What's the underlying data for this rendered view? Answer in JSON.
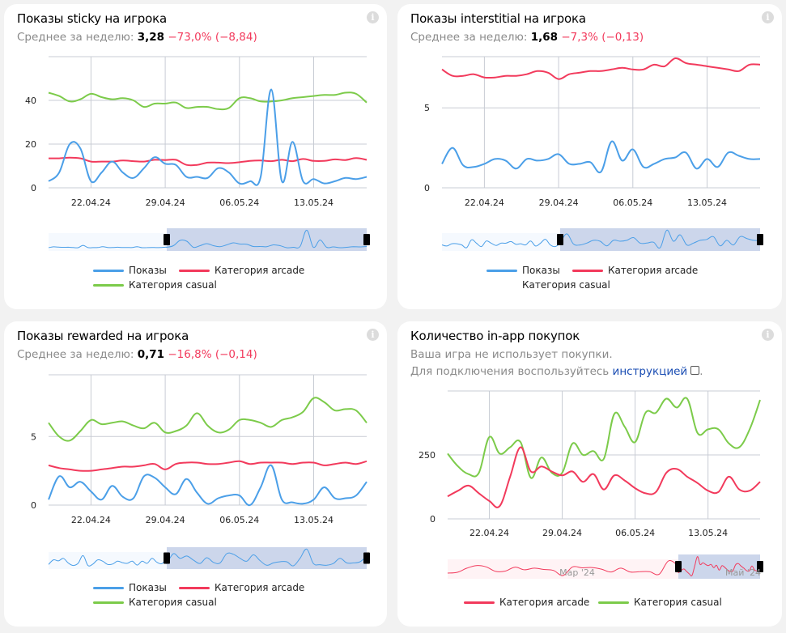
{
  "colors": {
    "shows": "#4b9fe8",
    "arcade": "#f23a5c",
    "casual": "#7ccb4a",
    "grid": "#c8ccd4",
    "navigator_mask": "#ccd6eb"
  },
  "cards": [
    {
      "title": "Показы sticky на игрока",
      "subtitle_prefix": "Среднее за неделю: ",
      "value": "3,28",
      "change": "−73,0% (−8,84)",
      "info_icon": "info-icon"
    },
    {
      "title": "Показы interstitial на игрока",
      "subtitle_prefix": "Среднее за неделю: ",
      "value": "1,68",
      "change": "−7,3% (−0,13)",
      "info_icon": "info-icon"
    },
    {
      "title": "Показы rewarded на игрока",
      "subtitle_prefix": "Среднее за неделю: ",
      "value": "0,71",
      "change": "−16,8% (−0,14)",
      "info_icon": "info-icon"
    },
    {
      "title": "Количество in-app покупок",
      "line1": "Ваша игра не использует покупки.",
      "line2_prefix": "Для подключения воспользуйтесь ",
      "link": "инструкцией",
      "line2_suffix": ".",
      "info_icon": "info-icon"
    }
  ],
  "legend": {
    "shows": "Показы",
    "arcade": "Категория arcade",
    "casual": "Категория casual"
  },
  "navigator_labels": [
    "Мар '24",
    "Май '24"
  ],
  "chart_data": [
    {
      "type": "line",
      "title": "Показы sticky на игрока",
      "x_start": "18.04.24",
      "x_end": "18.05.24",
      "xticks": [
        "22.04.24",
        "29.04.24",
        "06.05.24",
        "13.05.24"
      ],
      "yticks": [
        0,
        20,
        40
      ],
      "ylim": [
        0,
        60
      ],
      "grid": true,
      "legend": "bottom",
      "series": [
        {
          "name": "Показы",
          "key": "shows",
          "values": [
            3,
            7,
            20,
            18,
            3,
            7,
            12,
            7,
            4.5,
            9,
            14,
            11,
            10.5,
            5,
            5,
            4.5,
            9,
            7,
            2,
            3,
            5,
            45,
            3,
            21,
            3,
            4,
            2,
            3,
            4.5,
            4,
            5
          ]
        },
        {
          "name": "Категория arcade",
          "key": "arcade",
          "values": [
            13.5,
            13.5,
            13.8,
            13.5,
            12,
            12,
            12,
            12.5,
            12.2,
            12,
            12.8,
            12.7,
            12.8,
            10.5,
            10.5,
            11.5,
            11.5,
            11.3,
            11.7,
            12.3,
            12.5,
            12.2,
            12.8,
            12.2,
            13.2,
            12.3,
            12.3,
            13,
            12.7,
            13.6,
            12.8
          ]
        },
        {
          "name": "Категория casual",
          "key": "casual",
          "values": [
            43.5,
            42,
            39.5,
            40.5,
            43,
            41.5,
            40.5,
            41,
            40,
            37,
            38.5,
            38.5,
            39,
            36.5,
            37,
            37,
            36,
            36.5,
            41,
            41,
            39.5,
            39.5,
            40,
            41,
            41.5,
            42,
            42.5,
            42.5,
            43.5,
            43,
            39
          ]
        }
      ]
    },
    {
      "type": "line",
      "title": "Показы interstitial на игрока",
      "x_start": "18.04.24",
      "x_end": "18.05.24",
      "xticks": [
        "22.04.24",
        "29.04.24",
        "06.05.24",
        "13.05.24"
      ],
      "yticks": [
        0,
        5
      ],
      "ylim": [
        0,
        8.2
      ],
      "grid": true,
      "legend": "bottom",
      "series": [
        {
          "name": "Показы",
          "key": "shows",
          "values": [
            1.5,
            2.5,
            1.4,
            1.3,
            1.5,
            1.8,
            1.7,
            1.2,
            1.8,
            1.7,
            1.8,
            2.1,
            1.5,
            1.5,
            1.6,
            1,
            2.9,
            1.7,
            2.4,
            1.3,
            1.5,
            1.8,
            1.9,
            2.2,
            1.2,
            1.8,
            1.3,
            2.2,
            2,
            1.8,
            1.8
          ]
        },
        {
          "name": "Категория arcade",
          "key": "arcade",
          "values": [
            7.4,
            7,
            7,
            7.1,
            6.9,
            6.9,
            7,
            7,
            7.1,
            7.3,
            7.2,
            6.8,
            7.1,
            7.2,
            7.3,
            7.3,
            7.4,
            7.5,
            7.4,
            7.4,
            7.7,
            7.6,
            8.1,
            7.8,
            7.7,
            7.6,
            7.5,
            7.4,
            7.3,
            7.7,
            7.7
          ]
        },
        {
          "name": "Категория casual",
          "key": "casual",
          "values": []
        }
      ]
    },
    {
      "type": "line",
      "title": "Показы rewarded на игрока",
      "x_start": "18.04.24",
      "x_end": "18.05.24",
      "xticks": [
        "22.04.24",
        "29.04.24",
        "06.05.24",
        "13.05.24"
      ],
      "yticks": [
        0,
        5
      ],
      "ylim": [
        0,
        9.5
      ],
      "grid": true,
      "legend": "bottom",
      "series": [
        {
          "name": "Показы",
          "key": "shows",
          "values": [
            0.4,
            2.1,
            1.3,
            1.7,
            1,
            0.4,
            1.4,
            0.6,
            0.5,
            2.1,
            2,
            1.3,
            0.8,
            1.9,
            0.9,
            0.1,
            0.5,
            0.7,
            0.7,
            0,
            1.3,
            2.9,
            0.4,
            0.2,
            0.1,
            0.4,
            1.3,
            0.5,
            0.5,
            0.7,
            1.7
          ]
        },
        {
          "name": "Категория arcade",
          "key": "arcade",
          "values": [
            2.9,
            2.7,
            2.6,
            2.5,
            2.5,
            2.6,
            2.7,
            2.8,
            2.8,
            2.9,
            3,
            2.6,
            3,
            3.1,
            3.1,
            3,
            3,
            3.1,
            3.2,
            3,
            3.1,
            3.1,
            3.1,
            3,
            3.1,
            3.1,
            2.9,
            3,
            3.1,
            3,
            3.2
          ]
        },
        {
          "name": "Категория casual",
          "key": "casual",
          "values": [
            6,
            5,
            4.7,
            5.4,
            6.2,
            5.9,
            6,
            6.1,
            5.8,
            5.6,
            6,
            5.3,
            5.4,
            5.8,
            6.7,
            5.8,
            5.3,
            5.5,
            6.2,
            6.2,
            6,
            5.7,
            6.2,
            6.4,
            6.8,
            7.8,
            7.5,
            6.9,
            7,
            6.9,
            6
          ]
        }
      ]
    },
    {
      "type": "line",
      "title": "Количество in-app покупок",
      "x_start": "18.04.24",
      "x_end": "18.05.24",
      "xticks": [
        "22.04.24",
        "29.04.24",
        "06.05.24",
        "13.05.24"
      ],
      "yticks": [
        0,
        250
      ],
      "ylim": [
        0,
        500
      ],
      "grid": true,
      "legend": "bottom",
      "series": [
        {
          "name": "Категория arcade",
          "key": "arcade",
          "values": [
            88,
            110,
            130,
            100,
            70,
            50,
            165,
            280,
            185,
            205,
            185,
            170,
            185,
            145,
            175,
            115,
            170,
            150,
            120,
            100,
            105,
            180,
            195,
            165,
            140,
            110,
            105,
            165,
            115,
            110,
            145
          ]
        },
        {
          "name": "Категория casual",
          "key": "casual",
          "values": [
            255,
            205,
            175,
            180,
            320,
            255,
            280,
            300,
            160,
            240,
            180,
            180,
            295,
            250,
            265,
            235,
            410,
            360,
            300,
            415,
            415,
            470,
            435,
            470,
            335,
            350,
            350,
            295,
            280,
            350,
            465
          ]
        }
      ]
    }
  ]
}
